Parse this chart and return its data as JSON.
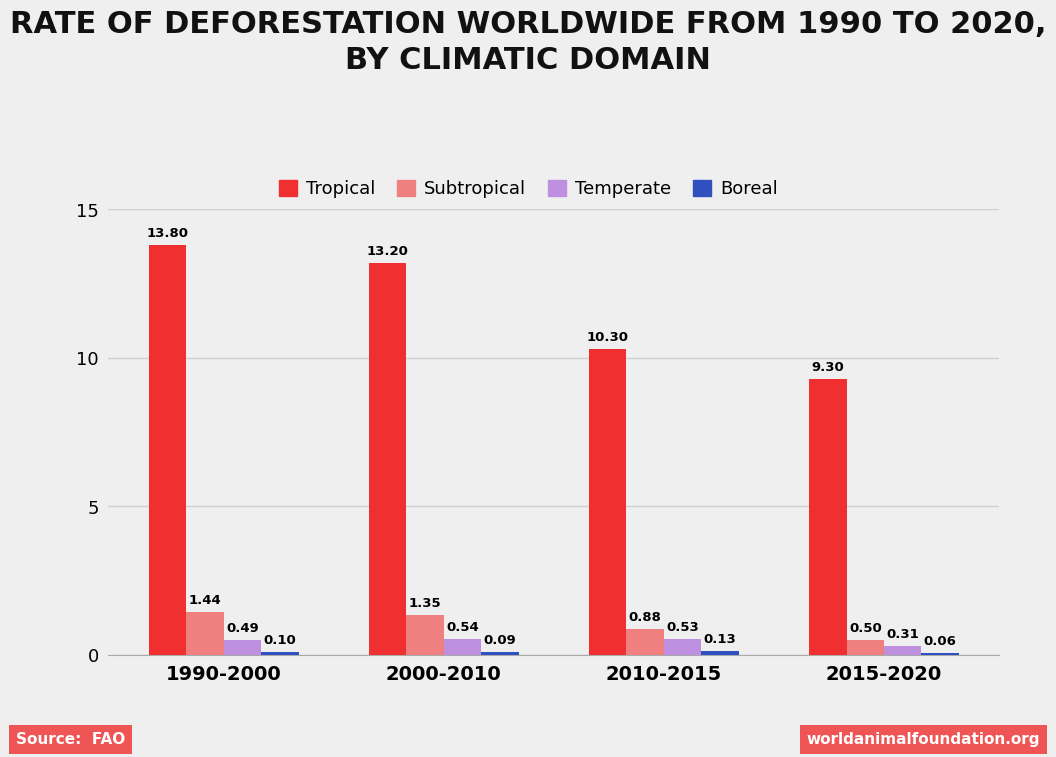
{
  "title": "RATE OF DEFORESTATION WORLDWIDE FROM 1990 TO 2020,\nBY CLIMATIC DOMAIN",
  "categories": [
    "1990-2000",
    "2000-2010",
    "2010-2015",
    "2015-2020"
  ],
  "series": {
    "Tropical": [
      13.8,
      13.2,
      10.3,
      9.3
    ],
    "Subtropical": [
      1.44,
      1.35,
      0.88,
      0.5
    ],
    "Temperate": [
      0.49,
      0.54,
      0.53,
      0.31
    ],
    "Boreal": [
      0.1,
      0.09,
      0.13,
      0.06
    ]
  },
  "colors": {
    "Tropical": "#f03030",
    "Subtropical": "#f08080",
    "Temperate": "#c090e0",
    "Boreal": "#3050c0"
  },
  "ylim": [
    0,
    15
  ],
  "yticks": [
    0,
    5,
    10,
    15
  ],
  "background_color": "#efefef",
  "grid_color": "#d0d0d0",
  "title_fontsize": 22,
  "bar_width": 0.17,
  "source_text": "Source:  FAO",
  "watermark_text": "worldanimalfoundation.org",
  "watermark_bg": "#f05555"
}
